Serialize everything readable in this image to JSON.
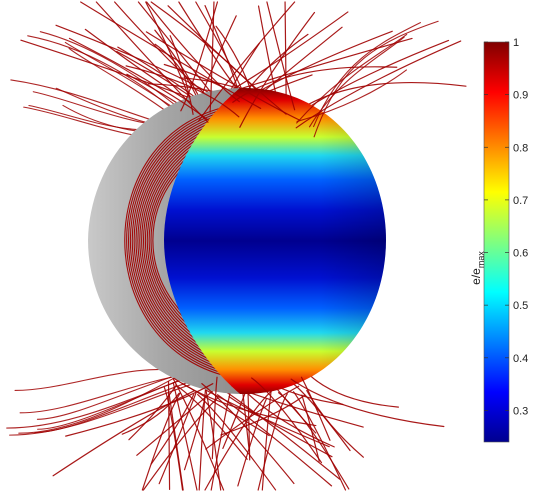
{
  "colorbar": {
    "label_main": "e/e",
    "label_sub": "max",
    "range": [
      0.24,
      1.0
    ],
    "ticks": [
      {
        "value": 1,
        "text": "1"
      },
      {
        "value": 0.9,
        "text": "0.9"
      },
      {
        "value": 0.8,
        "text": "0.8"
      },
      {
        "value": 0.7,
        "text": "0.7"
      },
      {
        "value": 0.6,
        "text": "0.6"
      },
      {
        "value": 0.5,
        "text": "0.5"
      },
      {
        "value": 0.4,
        "text": "0.4"
      },
      {
        "value": 0.3,
        "text": "0.3"
      }
    ],
    "colormap": [
      "#00008f",
      "#0000ff",
      "#00ffff",
      "#ffff00",
      "#ff0000",
      "#800000"
    ]
  },
  "scene": {
    "sphere_colormap": "jet",
    "sphere_value_equator": 0.24,
    "sphere_value_pole": 1.0,
    "cut_face_color": "#9b9b9b",
    "field_line_color": "#a00000"
  }
}
